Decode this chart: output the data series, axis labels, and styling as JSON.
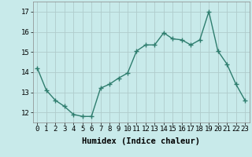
{
  "x": [
    0,
    1,
    2,
    3,
    4,
    5,
    6,
    7,
    8,
    9,
    10,
    11,
    12,
    13,
    14,
    15,
    16,
    17,
    18,
    19,
    20,
    21,
    22,
    23
  ],
  "y": [
    14.2,
    13.1,
    12.6,
    12.3,
    11.9,
    11.8,
    11.8,
    13.2,
    13.4,
    13.7,
    13.95,
    15.05,
    15.35,
    15.35,
    15.95,
    15.65,
    15.6,
    15.35,
    15.6,
    17.0,
    15.05,
    14.4,
    13.4,
    12.6
  ],
  "line_color": "#2e7d6e",
  "marker_color": "#2e7d6e",
  "bg_color": "#c8eaea",
  "grid_color": "#b0cccc",
  "xlabel": "Humidex (Indice chaleur)",
  "ylim": [
    11.5,
    17.5
  ],
  "yticks": [
    12,
    13,
    14,
    15,
    16,
    17
  ],
  "xticks": [
    0,
    1,
    2,
    3,
    4,
    5,
    6,
    7,
    8,
    9,
    10,
    11,
    12,
    13,
    14,
    15,
    16,
    17,
    18,
    19,
    20,
    21,
    22,
    23
  ],
  "xlabel_fontsize": 7.5,
  "tick_fontsize": 6.5,
  "linewidth": 1.0,
  "markersize": 2.5
}
